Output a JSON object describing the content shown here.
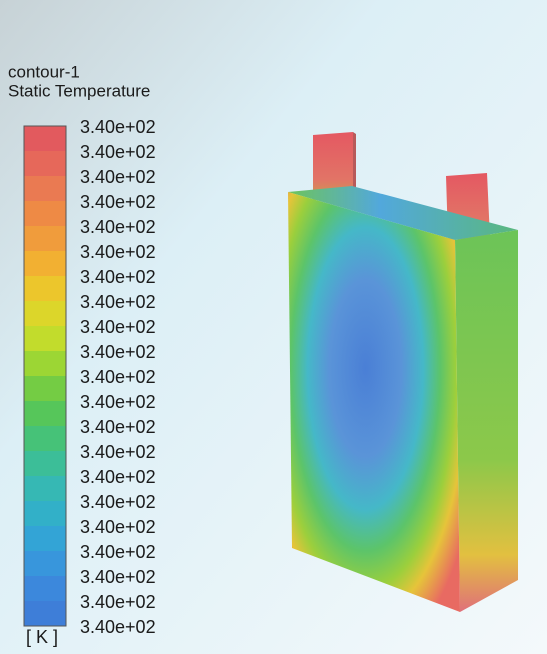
{
  "legend": {
    "title": "contour-1",
    "quantity": "Static Temperature",
    "labels": [
      "3.40e+02",
      "3.40e+02",
      "3.40e+02",
      "3.40e+02",
      "3.40e+02",
      "3.40e+02",
      "3.40e+02",
      "3.40e+02",
      "3.40e+02",
      "3.40e+02",
      "3.40e+02",
      "3.40e+02",
      "3.40e+02",
      "3.40e+02",
      "3.40e+02",
      "3.40e+02",
      "3.40e+02",
      "3.40e+02",
      "3.40e+02",
      "3.40e+02",
      "3.40e+02"
    ],
    "unit": "[ K ]",
    "colors": [
      "#e25a5e",
      "#e6685a",
      "#ea7a52",
      "#ee8a45",
      "#f09c3c",
      "#f2b032",
      "#ecc62c",
      "#dcd62a",
      "#c2dc2c",
      "#9cd634",
      "#74cc44",
      "#56c65a",
      "#46c278",
      "#3cbe98",
      "#36b8b4",
      "#32b0c8",
      "#33a4d6",
      "#3896dc",
      "#3c88dc",
      "#3e7ed8"
    ]
  }
}
